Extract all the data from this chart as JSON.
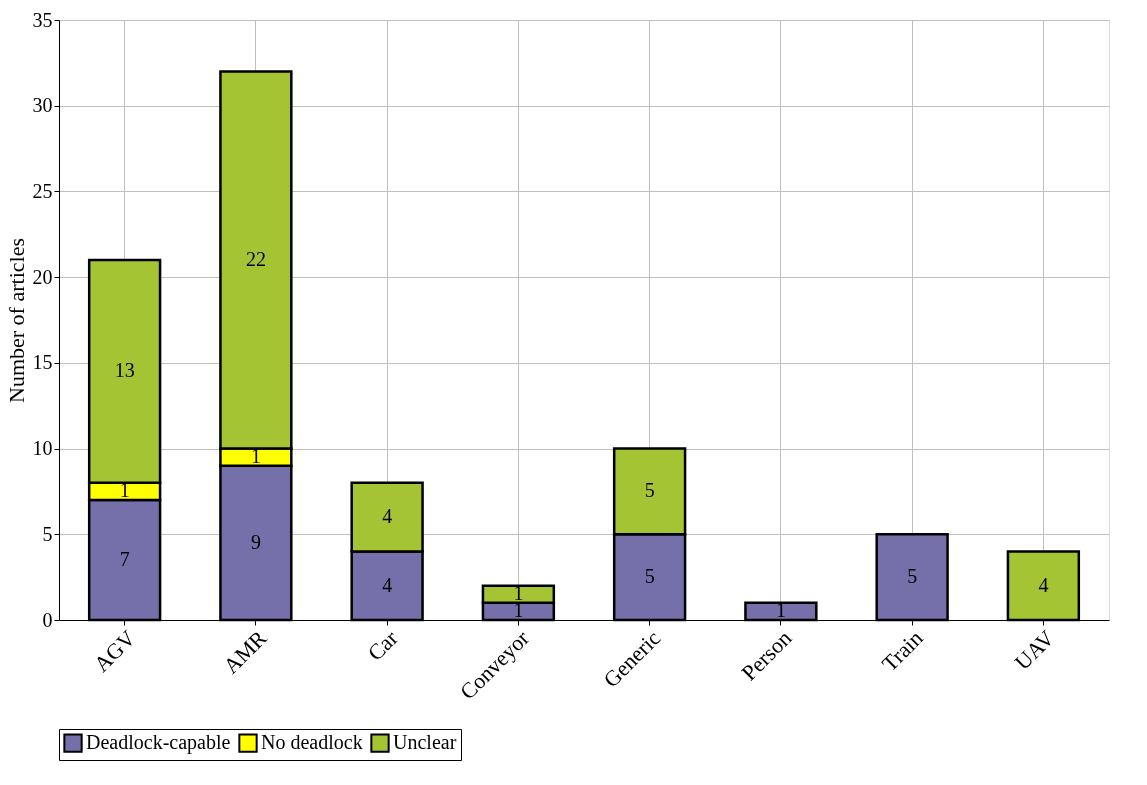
{
  "chart_data": {
    "type": "bar",
    "stacked": true,
    "ylabel": "Number of articles",
    "categories": [
      "AGV",
      "AMR",
      "Car",
      "Conveyor",
      "Generic",
      "Person",
      "Train",
      "UAV"
    ],
    "series": [
      {
        "name": "Deadlock-capable",
        "color": "#7570a9",
        "values": [
          7,
          9,
          4,
          1,
          5,
          1,
          5,
          0
        ],
        "value_labels": [
          "7",
          "9",
          "4",
          "1",
          "5",
          "1",
          "5",
          null
        ]
      },
      {
        "name": "No deadlock",
        "color": "#ffff00",
        "values": [
          1,
          1,
          0,
          0,
          0,
          0,
          0,
          0
        ],
        "value_labels": [
          "1",
          "1",
          null,
          null,
          null,
          null,
          null,
          null
        ]
      },
      {
        "name": "Unclear",
        "color": "#a5c433",
        "values": [
          13,
          22,
          4,
          1,
          5,
          0,
          0,
          4
        ],
        "value_labels": [
          "13",
          "22",
          "4",
          "1",
          "5",
          null,
          null,
          "4"
        ]
      }
    ],
    "ylim": [
      0,
      35
    ],
    "yticks": [
      0,
      5,
      10,
      15,
      20,
      25,
      30,
      35
    ],
    "grid": true,
    "legend": "bottom"
  }
}
